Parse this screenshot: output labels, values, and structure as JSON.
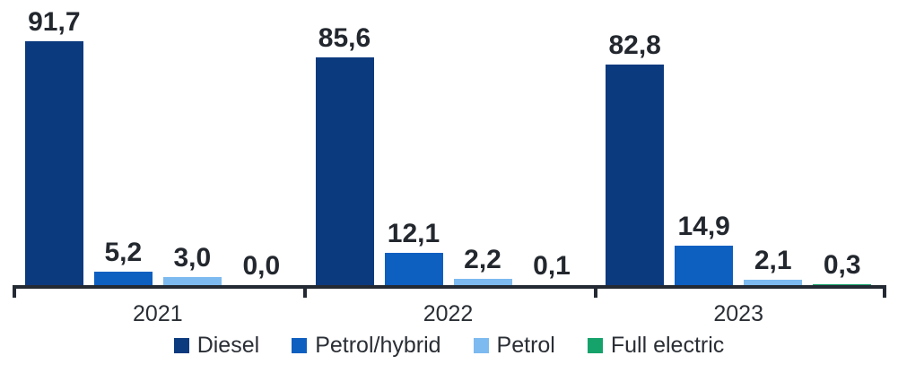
{
  "chart_data": {
    "type": "bar",
    "title": "",
    "categories": [
      "2021",
      "2022",
      "2023"
    ],
    "series": [
      {
        "name": "Diesel",
        "color": "#0c3a7e",
        "values": [
          91.7,
          85.6,
          82.8
        ],
        "value_labels": [
          "91,7",
          "85,6",
          "82,8"
        ]
      },
      {
        "name": "Petrol/hybrid",
        "color": "#0d5fc0",
        "values": [
          5.2,
          12.1,
          14.9
        ],
        "value_labels": [
          "5,2",
          "12,1",
          "14,9"
        ]
      },
      {
        "name": "Petrol",
        "color": "#7cbaef",
        "values": [
          3.0,
          2.2,
          2.1
        ],
        "value_labels": [
          "3,0",
          "2,2",
          "2,1"
        ]
      },
      {
        "name": "Full electric",
        "color": "#16a26b",
        "values": [
          0.0,
          0.1,
          0.3
        ],
        "value_labels": [
          "0,0",
          "0,1",
          "0,3"
        ]
      }
    ],
    "ylim": [
      0,
      91.7
    ],
    "grid": false,
    "legend_position": "bottom",
    "decimal_separator": ",",
    "axis_color": "#232a33",
    "value_label_color": "#23272e",
    "tick_label_color": "#2a2e35"
  }
}
